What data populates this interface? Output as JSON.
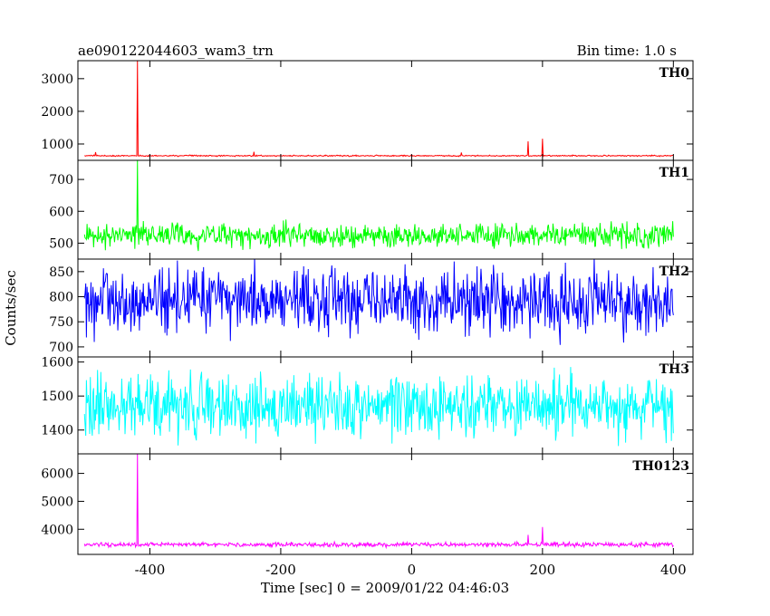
{
  "chart_data": {
    "type": "line",
    "title": "ae090122044603_wam3_trn",
    "subtitle": "Bin time: 1.0 s",
    "xlabel": "Time [sec] 0 = 2009/01/22 04:46:03",
    "ylabel": "Counts/sec",
    "xlim": [
      -510,
      430
    ],
    "xticks": [
      -400,
      -200,
      0,
      200,
      400
    ],
    "x_start": -500,
    "x_end": 400,
    "bin_time_s": 1.0,
    "panels": [
      {
        "name": "TH0",
        "color": "#ff0000",
        "ylim": [
          500,
          3550
        ],
        "yticks": [
          1000,
          2000,
          3000
        ],
        "baseline": 640,
        "noise_amplitude": 28,
        "spikes": [
          {
            "x": -419,
            "y": 3550
          },
          {
            "x": -483,
            "y": 750
          },
          {
            "x": -241,
            "y": 760
          },
          {
            "x": 76,
            "y": 740
          },
          {
            "x": 178,
            "y": 1080
          },
          {
            "x": 200,
            "y": 1160
          }
        ]
      },
      {
        "name": "TH1",
        "color": "#00ff00",
        "ylim": [
          450,
          760
        ],
        "yticks": [
          500,
          600,
          700
        ],
        "baseline": 525,
        "noise_amplitude": 55,
        "spikes": [
          {
            "x": -419,
            "y": 760
          }
        ]
      },
      {
        "name": "TH2",
        "color": "#0000ff",
        "ylim": [
          680,
          875
        ],
        "yticks": [
          700,
          750,
          800,
          850
        ],
        "baseline": 790,
        "noise_amplitude": 95,
        "spikes": []
      },
      {
        "name": "TH3",
        "color": "#00ffff",
        "ylim": [
          1330,
          1615
        ],
        "yticks": [
          1400,
          1500,
          1600
        ],
        "baseline": 1470,
        "noise_amplitude": 135,
        "spikes": []
      },
      {
        "name": "TH0123",
        "color": "#ff00ff",
        "ylim": [
          3100,
          6700
        ],
        "yticks": [
          4000,
          5000,
          6000
        ],
        "baseline": 3450,
        "noise_amplitude": 110,
        "spikes": [
          {
            "x": -419,
            "y": 6700
          },
          {
            "x": 178,
            "y": 3800
          },
          {
            "x": 200,
            "y": 4080
          }
        ]
      }
    ]
  }
}
